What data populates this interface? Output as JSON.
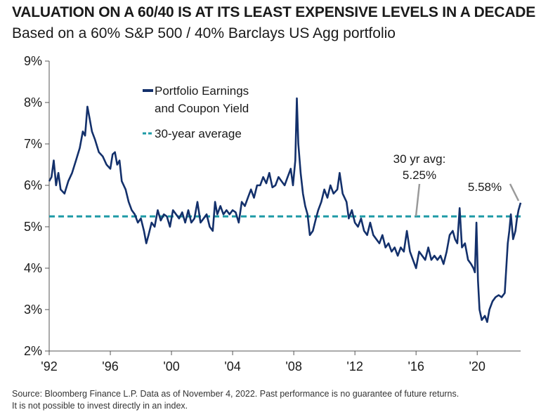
{
  "chart_data": {
    "type": "line",
    "title": "VALUATION ON A 60/40 IS AT ITS LEAST EXPENSIVE LEVELS IN A DECADE",
    "subtitle": "Based on a 60% S&P 500 / 40% Barclays US Agg portfolio",
    "xlabel": "",
    "ylabel": "",
    "x_range": [
      1992.0,
      2022.84
    ],
    "ylim": [
      2,
      9
    ],
    "y_ticks": [
      "2%",
      "3%",
      "4%",
      "5%",
      "6%",
      "7%",
      "8%",
      "9%"
    ],
    "x_ticks": [
      {
        "label": "'92",
        "x": 1992
      },
      {
        "label": "'96",
        "x": 1996
      },
      {
        "label": "'00",
        "x": 2000
      },
      {
        "label": "'04",
        "x": 2004
      },
      {
        "label": "'08",
        "x": 2008
      },
      {
        "label": "'12",
        "x": 2012
      },
      {
        "label": "'16",
        "x": 2016
      },
      {
        "label": "'20",
        "x": 2020
      }
    ],
    "grid": false,
    "legend_position": "top-left",
    "series": [
      {
        "name": "Portfolio Earnings and Coupon Yield",
        "color": "#13306b",
        "style": "solid",
        "points": [
          [
            1992.0,
            6.1
          ],
          [
            1992.15,
            6.2
          ],
          [
            1992.3,
            6.6
          ],
          [
            1992.45,
            6.0
          ],
          [
            1992.6,
            6.3
          ],
          [
            1992.75,
            5.9
          ],
          [
            1993.0,
            5.8
          ],
          [
            1993.25,
            6.1
          ],
          [
            1993.5,
            6.3
          ],
          [
            1993.75,
            6.6
          ],
          [
            1994.0,
            6.9
          ],
          [
            1994.2,
            7.3
          ],
          [
            1994.35,
            7.2
          ],
          [
            1994.5,
            7.9
          ],
          [
            1994.65,
            7.6
          ],
          [
            1994.8,
            7.3
          ],
          [
            1995.0,
            7.1
          ],
          [
            1995.25,
            6.8
          ],
          [
            1995.5,
            6.7
          ],
          [
            1995.75,
            6.5
          ],
          [
            1996.0,
            6.4
          ],
          [
            1996.15,
            6.75
          ],
          [
            1996.3,
            6.8
          ],
          [
            1996.45,
            6.5
          ],
          [
            1996.6,
            6.6
          ],
          [
            1996.75,
            6.1
          ],
          [
            1997.0,
            5.9
          ],
          [
            1997.2,
            5.6
          ],
          [
            1997.4,
            5.4
          ],
          [
            1997.6,
            5.3
          ],
          [
            1997.8,
            5.1
          ],
          [
            1998.0,
            5.2
          ],
          [
            1998.2,
            4.9
          ],
          [
            1998.35,
            4.6
          ],
          [
            1998.5,
            4.8
          ],
          [
            1998.7,
            5.1
          ],
          [
            1998.9,
            5.0
          ],
          [
            1999.1,
            5.4
          ],
          [
            1999.3,
            5.15
          ],
          [
            1999.5,
            5.3
          ],
          [
            1999.7,
            5.25
          ],
          [
            1999.9,
            5.0
          ],
          [
            2000.1,
            5.4
          ],
          [
            2000.3,
            5.3
          ],
          [
            2000.5,
            5.2
          ],
          [
            2000.7,
            5.35
          ],
          [
            2000.9,
            5.1
          ],
          [
            2001.1,
            5.4
          ],
          [
            2001.3,
            5.1
          ],
          [
            2001.5,
            5.2
          ],
          [
            2001.7,
            5.6
          ],
          [
            2001.9,
            5.1
          ],
          [
            2002.1,
            5.2
          ],
          [
            2002.3,
            5.3
          ],
          [
            2002.5,
            5.0
          ],
          [
            2002.7,
            4.9
          ],
          [
            2002.85,
            5.6
          ],
          [
            2003.0,
            5.3
          ],
          [
            2003.2,
            5.5
          ],
          [
            2003.4,
            5.3
          ],
          [
            2003.6,
            5.4
          ],
          [
            2003.8,
            5.3
          ],
          [
            2004.0,
            5.4
          ],
          [
            2004.2,
            5.35
          ],
          [
            2004.4,
            5.1
          ],
          [
            2004.6,
            5.6
          ],
          [
            2004.8,
            5.5
          ],
          [
            2005.0,
            5.7
          ],
          [
            2005.2,
            5.9
          ],
          [
            2005.4,
            5.7
          ],
          [
            2005.6,
            6.0
          ],
          [
            2005.8,
            6.0
          ],
          [
            2006.0,
            6.2
          ],
          [
            2006.2,
            6.05
          ],
          [
            2006.4,
            6.3
          ],
          [
            2006.6,
            5.95
          ],
          [
            2006.8,
            6.0
          ],
          [
            2007.0,
            6.2
          ],
          [
            2007.2,
            6.1
          ],
          [
            2007.4,
            6.0
          ],
          [
            2007.6,
            6.2
          ],
          [
            2007.8,
            6.4
          ],
          [
            2007.95,
            6.0
          ],
          [
            2008.1,
            6.6
          ],
          [
            2008.2,
            8.1
          ],
          [
            2008.3,
            7.0
          ],
          [
            2008.45,
            6.3
          ],
          [
            2008.6,
            5.8
          ],
          [
            2008.75,
            5.5
          ],
          [
            2008.9,
            5.3
          ],
          [
            2009.05,
            4.8
          ],
          [
            2009.25,
            4.9
          ],
          [
            2009.45,
            5.2
          ],
          [
            2009.6,
            5.4
          ],
          [
            2009.8,
            5.6
          ],
          [
            2010.0,
            5.9
          ],
          [
            2010.2,
            5.7
          ],
          [
            2010.4,
            6.0
          ],
          [
            2010.6,
            5.8
          ],
          [
            2010.85,
            5.9
          ],
          [
            2011.0,
            6.3
          ],
          [
            2011.2,
            5.8
          ],
          [
            2011.45,
            5.6
          ],
          [
            2011.6,
            5.2
          ],
          [
            2011.8,
            5.4
          ],
          [
            2012.0,
            5.1
          ],
          [
            2012.2,
            5.0
          ],
          [
            2012.4,
            5.2
          ],
          [
            2012.6,
            4.9
          ],
          [
            2012.8,
            4.8
          ],
          [
            2013.0,
            5.1
          ],
          [
            2013.2,
            4.8
          ],
          [
            2013.4,
            4.7
          ],
          [
            2013.6,
            4.6
          ],
          [
            2013.8,
            4.8
          ],
          [
            2014.0,
            4.5
          ],
          [
            2014.2,
            4.6
          ],
          [
            2014.4,
            4.4
          ],
          [
            2014.6,
            4.5
          ],
          [
            2014.8,
            4.3
          ],
          [
            2015.0,
            4.5
          ],
          [
            2015.2,
            4.4
          ],
          [
            2015.4,
            4.9
          ],
          [
            2015.6,
            4.4
          ],
          [
            2015.8,
            4.2
          ],
          [
            2016.0,
            4.0
          ],
          [
            2016.2,
            4.4
          ],
          [
            2016.4,
            4.3
          ],
          [
            2016.6,
            4.2
          ],
          [
            2016.8,
            4.5
          ],
          [
            2017.0,
            4.2
          ],
          [
            2017.2,
            4.3
          ],
          [
            2017.4,
            4.2
          ],
          [
            2017.6,
            4.3
          ],
          [
            2017.8,
            4.1
          ],
          [
            2018.0,
            4.4
          ],
          [
            2018.2,
            4.8
          ],
          [
            2018.4,
            4.9
          ],
          [
            2018.55,
            4.7
          ],
          [
            2018.7,
            4.6
          ],
          [
            2018.85,
            5.45
          ],
          [
            2019.0,
            4.5
          ],
          [
            2019.2,
            4.6
          ],
          [
            2019.4,
            4.2
          ],
          [
            2019.6,
            4.1
          ],
          [
            2019.75,
            4.0
          ],
          [
            2019.85,
            3.9
          ],
          [
            2019.95,
            5.1
          ],
          [
            2020.05,
            3.7
          ],
          [
            2020.15,
            3.0
          ],
          [
            2020.3,
            2.75
          ],
          [
            2020.5,
            2.85
          ],
          [
            2020.65,
            2.7
          ],
          [
            2020.8,
            3.0
          ],
          [
            2021.0,
            3.2
          ],
          [
            2021.2,
            3.3
          ],
          [
            2021.4,
            3.35
          ],
          [
            2021.6,
            3.3
          ],
          [
            2021.8,
            3.4
          ],
          [
            2022.0,
            4.6
          ],
          [
            2022.1,
            4.9
          ],
          [
            2022.2,
            5.3
          ],
          [
            2022.35,
            4.7
          ],
          [
            2022.5,
            4.9
          ],
          [
            2022.6,
            5.2
          ],
          [
            2022.7,
            5.4
          ],
          [
            2022.84,
            5.58
          ]
        ]
      },
      {
        "name": "30-year average",
        "color": "#1e9aa6",
        "style": "dashed",
        "points": [
          [
            1992.0,
            5.25
          ],
          [
            2022.84,
            5.25
          ]
        ]
      }
    ],
    "annotations": [
      {
        "text_lines": [
          "30 yr avg:",
          "5.25%"
        ],
        "points_to": [
          2015.4,
          5.25
        ]
      },
      {
        "text_lines": [
          "5.58%"
        ],
        "points_to": [
          2022.84,
          5.58
        ]
      }
    ]
  },
  "legend": {
    "line_label_1": "Portfolio Earnings",
    "line_label_2": "and Coupon Yield",
    "avg_label": "30-year average"
  },
  "source": {
    "line1": "Source: Bloomberg Finance L.P. Data as of November 4, 2022. Past performance is no guarantee of future returns.",
    "line2": "It is not possible to invest directly in an index."
  }
}
